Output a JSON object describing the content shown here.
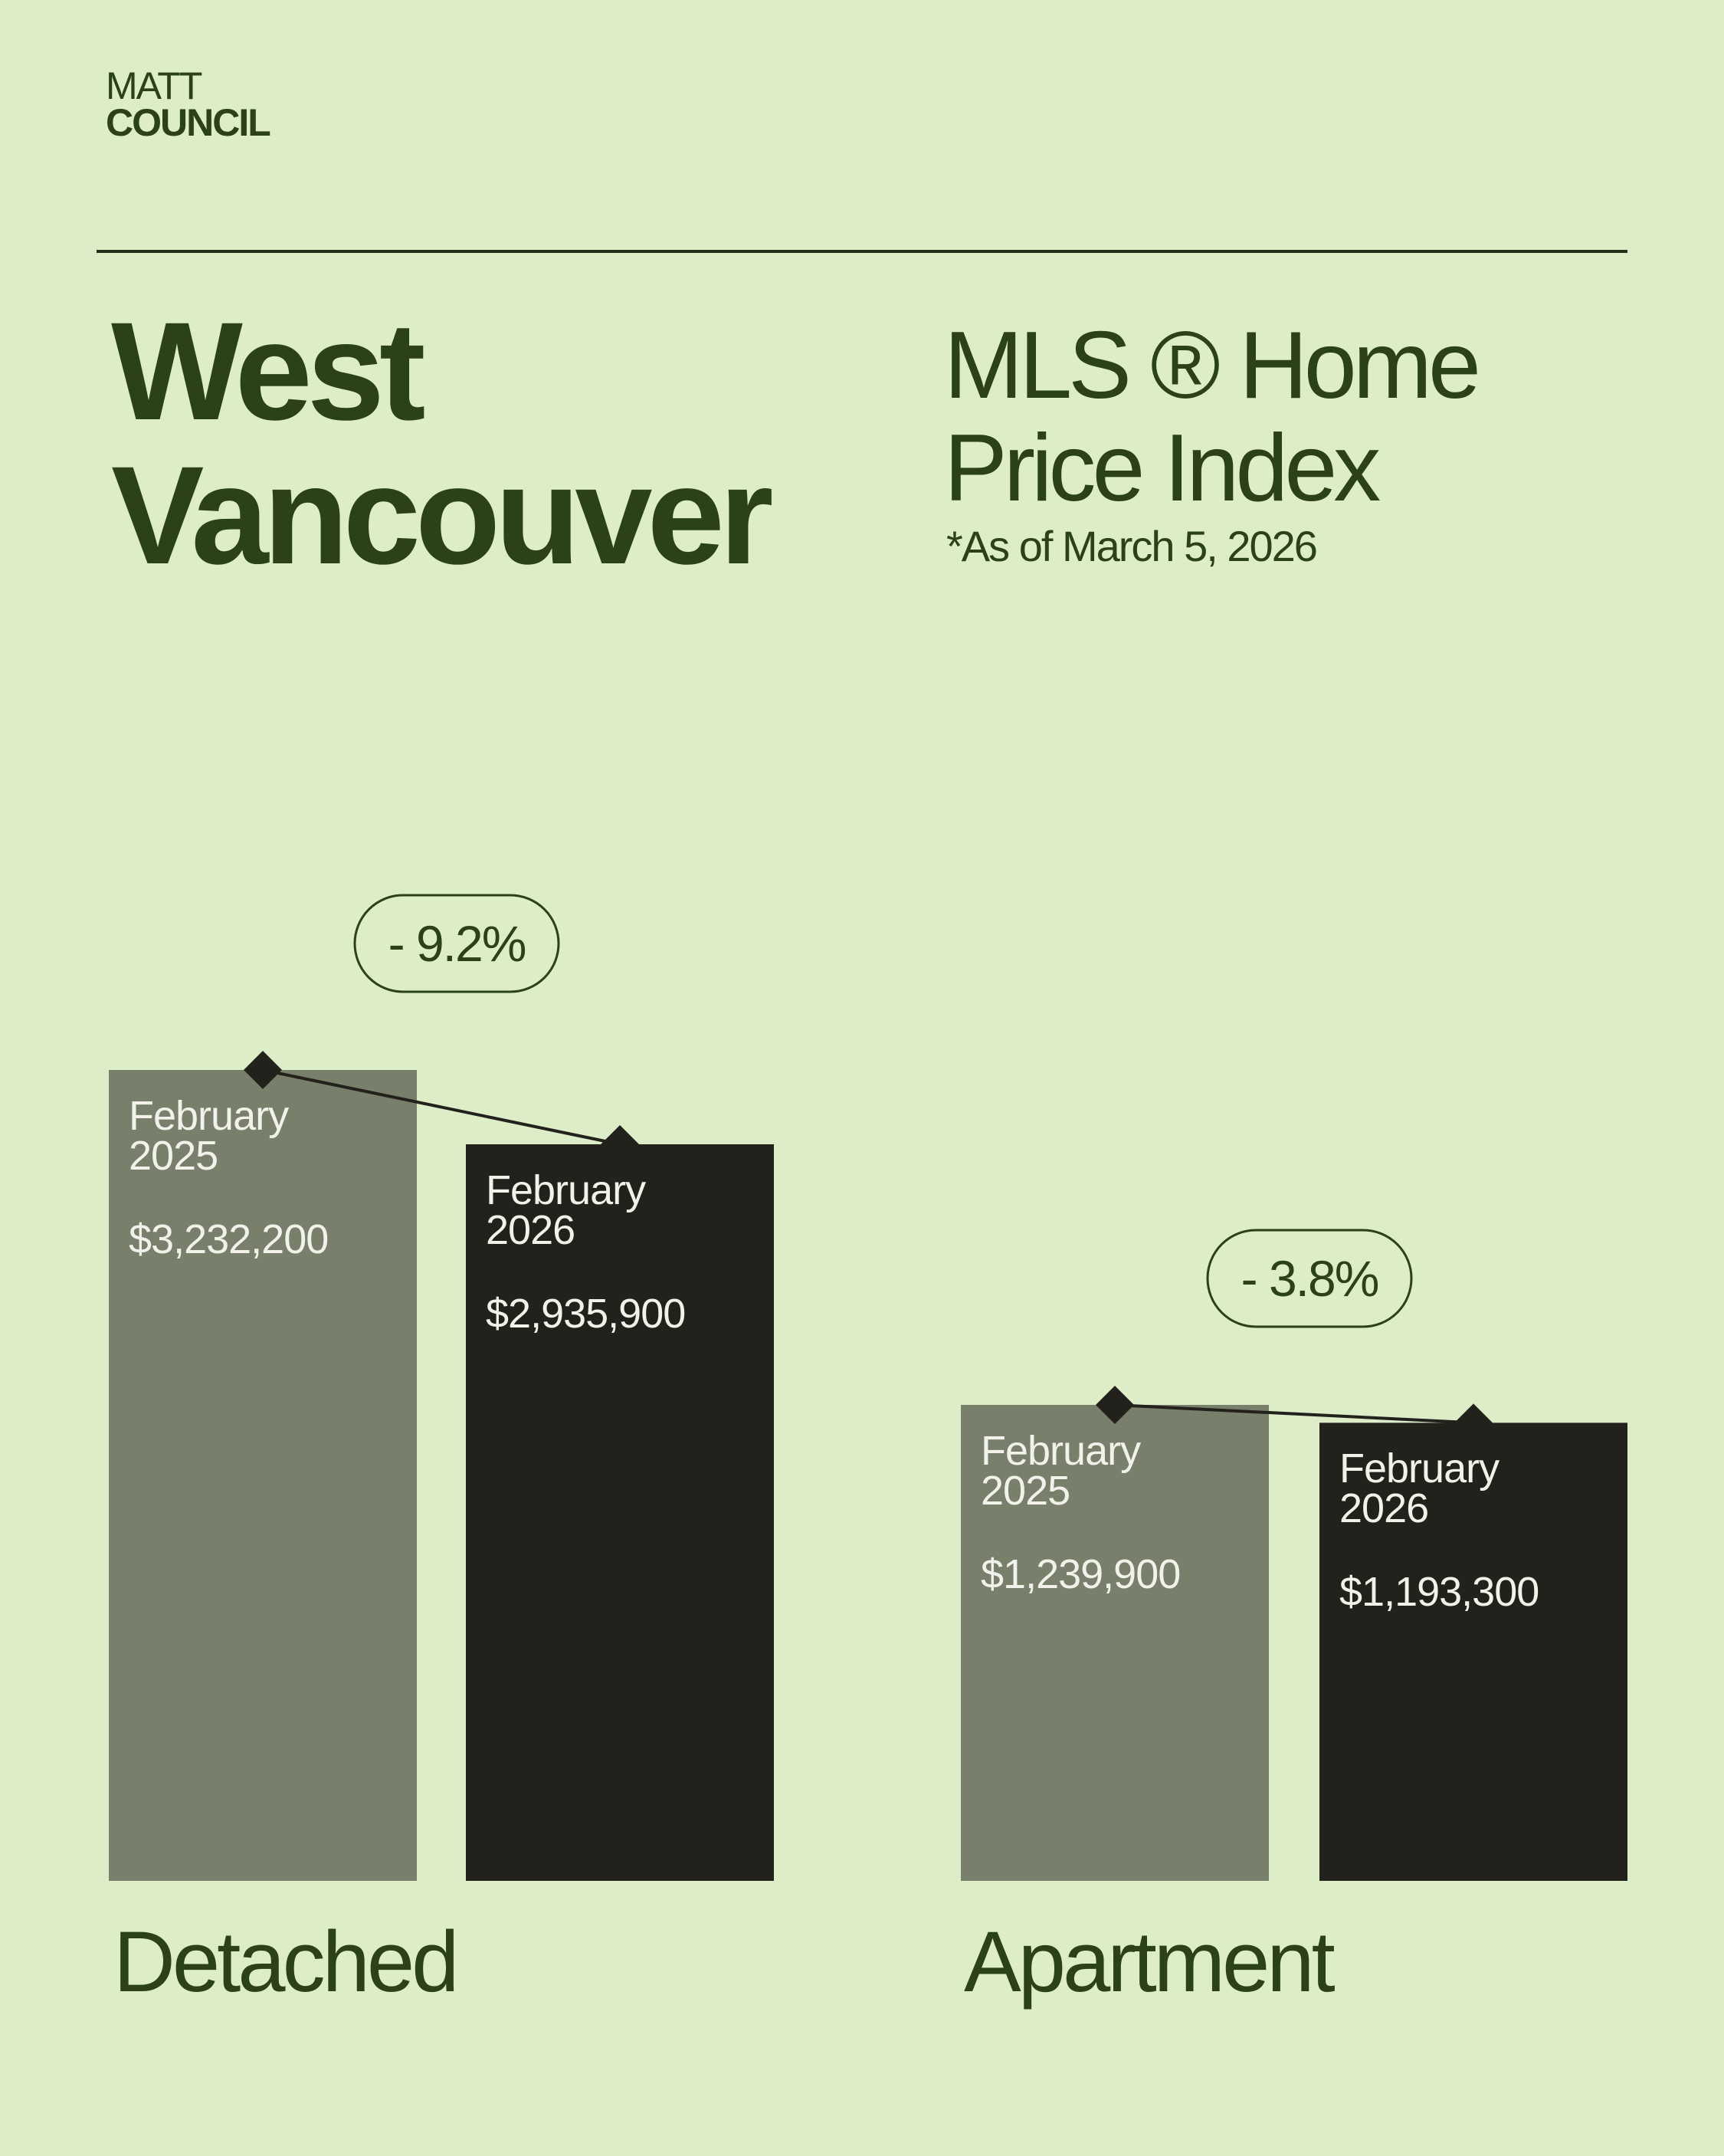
{
  "brand": {
    "line1": "MATT",
    "line2": "COUNCIL"
  },
  "title": "West Vancouver",
  "heading": "MLS ® Home Price Index",
  "note": "*As of March 5, 2026",
  "chart_data": {
    "type": "bar",
    "categories": [
      "Detached",
      "Apartment"
    ],
    "series": [
      {
        "name": "February 2025",
        "color": "#787f6b",
        "values": [
          3232200,
          1239900
        ],
        "value_labels": [
          "$3,232,200",
          "$1,239,900"
        ]
      },
      {
        "name": "February 2026",
        "color": "#23211c",
        "values": [
          2935900,
          1193300
        ],
        "value_labels": [
          "$2,935,900",
          "$1,193,300"
        ]
      }
    ],
    "changes": [
      -9.2,
      -3.8
    ],
    "change_labels": [
      "- 9.2%",
      "- 3.8%"
    ]
  }
}
